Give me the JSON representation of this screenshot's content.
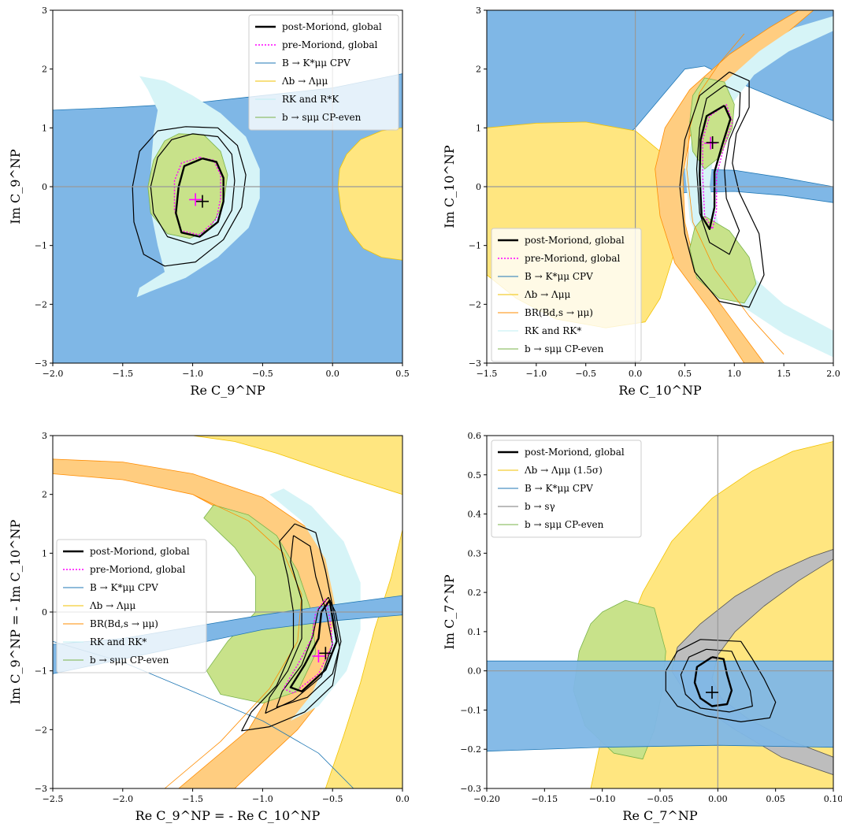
{
  "colors": {
    "blue": "#7fb7e6",
    "blue_edge": "#1f77b4",
    "yellow": "#ffe680",
    "yellow_edge": "#f2c200",
    "orange": "#ffcd80",
    "orange_edge": "#ff8c00",
    "cyan": "#d6f4f7",
    "green": "#c8e28a",
    "green_edge": "#7ab34a",
    "gray": "#bdbdbd",
    "magenta": "#ff00ff"
  },
  "chart_data": [
    {
      "type": "contour",
      "xlabel": "Re C_9^NP",
      "ylabel": "Im C_9^NP",
      "xlim": [
        -2.0,
        0.5
      ],
      "ylim": [
        -3,
        3
      ],
      "xticks": [
        "−2.0",
        "−1.5",
        "−1.0",
        "−0.5",
        "0.0",
        "0.5"
      ],
      "yticks": [
        "−3",
        "−2",
        "−1",
        "0",
        "1",
        "2",
        "3"
      ],
      "legend_loc": "top-right",
      "legend": [
        {
          "label": "post-Moriond, global",
          "style": "thick-black"
        },
        {
          "label": "pre-Moriond, global",
          "style": "dotted-magenta"
        },
        {
          "label": "B → K*μμ CPV",
          "style": "blue"
        },
        {
          "label": "Λb → Λμμ",
          "style": "yellow"
        },
        {
          "label": "RK and R*K",
          "style": "cyan"
        },
        {
          "label": "b → sμμ CP-even",
          "style": "green"
        }
      ],
      "best_fit_post": [
        -0.93,
        -0.25
      ],
      "best_fit_pre": [
        -0.98,
        -0.22
      ]
    },
    {
      "type": "contour",
      "xlabel": "Re C_10^NP",
      "ylabel": "Im C_10^NP",
      "xlim": [
        -1.5,
        2.0
      ],
      "ylim": [
        -3,
        3
      ],
      "xticks": [
        "−1.5",
        "−1.0",
        "−0.5",
        "0.0",
        "0.5",
        "1.0",
        "1.5",
        "2.0"
      ],
      "yticks": [
        "−3",
        "−2",
        "−1",
        "0",
        "1",
        "2",
        "3"
      ],
      "legend_loc": "bottom-left",
      "legend": [
        {
          "label": "post-Moriond, global",
          "style": "thick-black"
        },
        {
          "label": "pre-Moriond, global",
          "style": "dotted-magenta"
        },
        {
          "label": "B → K*μμ CPV",
          "style": "blue"
        },
        {
          "label": "Λb → Λμμ",
          "style": "yellow"
        },
        {
          "label": "BR(Bd,s → μμ)",
          "style": "orange"
        },
        {
          "label": "RK and RK*",
          "style": "cyan"
        },
        {
          "label": "b → sμμ CP-even",
          "style": "green"
        }
      ],
      "best_fit_post": [
        0.78,
        0.75
      ],
      "best_fit_pre": [
        0.76,
        0.74
      ]
    },
    {
      "type": "contour",
      "xlabel": "Re C_9^NP = - Re C_10^NP",
      "ylabel": "Im C_9^NP = - Im C_10^NP",
      "xlim": [
        -2.5,
        0.0
      ],
      "ylim": [
        -3,
        3
      ],
      "xticks": [
        "−2.5",
        "−2.0",
        "−1.5",
        "−1.0",
        "−0.5",
        "0.0"
      ],
      "yticks": [
        "−3",
        "−2",
        "−1",
        "0",
        "1",
        "2",
        "3"
      ],
      "legend_loc": "center-left",
      "legend": [
        {
          "label": "post-Moriond, global",
          "style": "thick-black"
        },
        {
          "label": "pre-Moriond, global",
          "style": "dotted-magenta"
        },
        {
          "label": "B → K*μμ CPV",
          "style": "blue"
        },
        {
          "label": "Λb → Λμμ",
          "style": "yellow"
        },
        {
          "label": "BR(Bd,s → μμ)",
          "style": "orange"
        },
        {
          "label": "RK and RK*",
          "style": "cyan"
        },
        {
          "label": "b → sμμ CP-even",
          "style": "green"
        }
      ],
      "best_fit_post": [
        -0.55,
        -0.7
      ],
      "best_fit_pre": [
        -0.6,
        -0.75
      ]
    },
    {
      "type": "contour",
      "xlabel": "Re C_7^NP",
      "ylabel": "Im C_7^NP",
      "xlim": [
        -0.2,
        0.1
      ],
      "ylim": [
        -0.3,
        0.6
      ],
      "xticks": [
        "−0.20",
        "−0.15",
        "−0.10",
        "−0.05",
        "0.00",
        "0.05",
        "0.10"
      ],
      "yticks": [
        "−0.3",
        "−0.2",
        "−0.1",
        "0.0",
        "0.1",
        "0.2",
        "0.3",
        "0.4",
        "0.5",
        "0.6"
      ],
      "legend_loc": "top-left",
      "legend": [
        {
          "label": "post-Moriond, global",
          "style": "thick-black"
        },
        {
          "label": "Λb → Λμμ (1.5σ)",
          "style": "yellow"
        },
        {
          "label": "B → K*μμ CPV",
          "style": "blue"
        },
        {
          "label": "b → sγ",
          "style": "gray"
        },
        {
          "label": "b → sμμ CP-even",
          "style": "green"
        }
      ],
      "best_fit_post": [
        -0.005,
        -0.055
      ]
    }
  ]
}
